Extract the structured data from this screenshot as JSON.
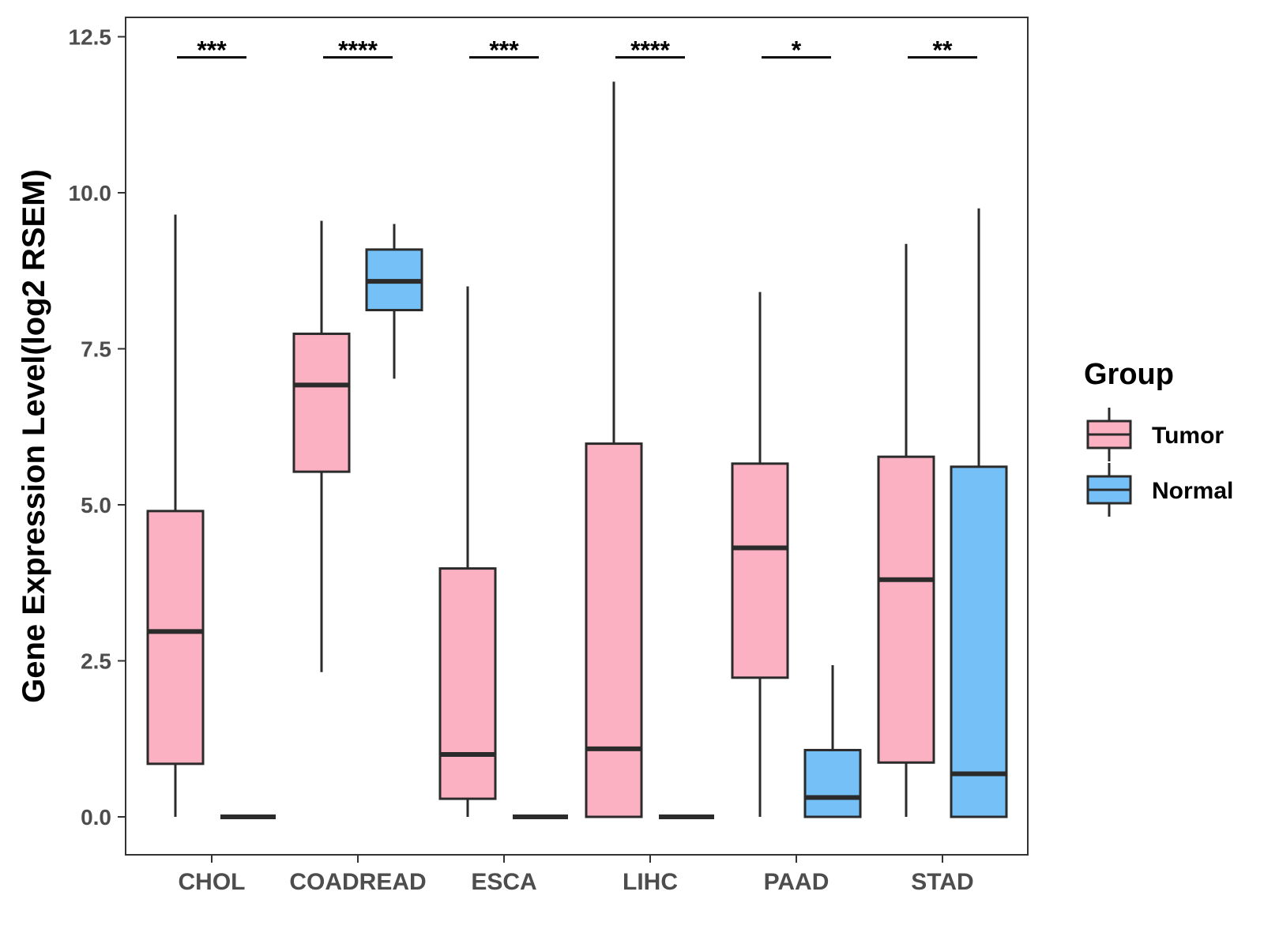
{
  "chart_data": {
    "type": "boxplot",
    "title": "",
    "xlabel": "",
    "ylabel": "Gene Expression Level(log2 RSEM)",
    "ylim": [
      -0.6,
      12.8
    ],
    "yticks": [
      0.0,
      2.5,
      5.0,
      7.5,
      10.0,
      12.5
    ],
    "ytick_labels": [
      "0.0",
      "2.5",
      "5.0",
      "7.5",
      "10.0",
      "12.5"
    ],
    "categories": [
      "CHOL",
      "COADREAD",
      "ESCA",
      "LIHC",
      "PAAD",
      "STAD"
    ],
    "legend": {
      "title": "Group",
      "position": "right",
      "entries": [
        {
          "name": "Tumor",
          "color": "#FBB1C1"
        },
        {
          "name": "Normal",
          "color": "#75C1F7"
        }
      ]
    },
    "series": [
      {
        "name": "Tumor",
        "color": "#FBB1C1",
        "boxes": [
          {
            "category": "CHOL",
            "min": 0.0,
            "q1": 0.85,
            "median": 2.97,
            "q3": 4.9,
            "max": 9.65
          },
          {
            "category": "COADREAD",
            "min": 2.32,
            "q1": 5.53,
            "median": 6.92,
            "q3": 7.74,
            "max": 9.55
          },
          {
            "category": "ESCA",
            "min": 0.0,
            "q1": 0.29,
            "median": 1.0,
            "q3": 3.98,
            "max": 8.5
          },
          {
            "category": "LIHC",
            "min": 0.0,
            "q1": 0.0,
            "median": 1.09,
            "q3": 5.98,
            "max": 11.78
          },
          {
            "category": "PAAD",
            "min": 0.0,
            "q1": 2.23,
            "median": 4.31,
            "q3": 5.66,
            "max": 8.41
          },
          {
            "category": "STAD",
            "min": 0.0,
            "q1": 0.87,
            "median": 3.8,
            "q3": 5.77,
            "max": 9.18
          }
        ]
      },
      {
        "name": "Normal",
        "color": "#75C1F7",
        "boxes": [
          {
            "category": "CHOL",
            "min": 0.0,
            "q1": 0.0,
            "median": 0.0,
            "q3": 0.0,
            "max": 0.0
          },
          {
            "category": "COADREAD",
            "min": 7.02,
            "q1": 8.12,
            "median": 8.58,
            "q3": 9.09,
            "max": 9.5
          },
          {
            "category": "ESCA",
            "min": 0.0,
            "q1": 0.0,
            "median": 0.0,
            "q3": 0.0,
            "max": 0.0
          },
          {
            "category": "LIHC",
            "min": 0.0,
            "q1": 0.0,
            "median": 0.0,
            "q3": 0.0,
            "max": 0.0
          },
          {
            "category": "PAAD",
            "min": 0.0,
            "q1": 0.0,
            "median": 0.31,
            "q3": 1.07,
            "max": 2.43
          },
          {
            "category": "STAD",
            "min": 0.0,
            "q1": 0.0,
            "median": 0.69,
            "q3": 5.61,
            "max": 9.75
          }
        ]
      }
    ],
    "significance": [
      {
        "category": "CHOL",
        "label": "***"
      },
      {
        "category": "COADREAD",
        "label": "****"
      },
      {
        "category": "ESCA",
        "label": "***"
      },
      {
        "category": "LIHC",
        "label": "****"
      },
      {
        "category": "PAAD",
        "label": "*"
      },
      {
        "category": "STAD",
        "label": "**"
      }
    ],
    "significance_y": 12.17,
    "grid": false
  }
}
